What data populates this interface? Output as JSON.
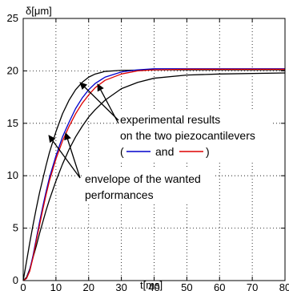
{
  "chart_data": {
    "type": "line",
    "ylabel": "δ[μm]",
    "xlabel": "t[ms]",
    "xlim": [
      0,
      80
    ],
    "ylim": [
      0,
      25
    ],
    "xticks": [
      0,
      10,
      20,
      30,
      40,
      50,
      60,
      70,
      80
    ],
    "yticks": [
      0,
      5,
      10,
      15,
      20,
      25
    ],
    "grid": true,
    "series": [
      {
        "color": "#000000",
        "points": [
          [
            0,
            0
          ],
          [
            1,
            1.8
          ],
          [
            2,
            3.6
          ],
          [
            3,
            5.3
          ],
          [
            4,
            6.9
          ],
          [
            5,
            8.4
          ],
          [
            6,
            9.7
          ],
          [
            7,
            11.0
          ],
          [
            8,
            12.2
          ],
          [
            10,
            14.2
          ],
          [
            12,
            15.9
          ],
          [
            14,
            17.2
          ],
          [
            16,
            18.2
          ],
          [
            18,
            18.9
          ],
          [
            20,
            19.4
          ],
          [
            22,
            19.7
          ],
          [
            25,
            19.95
          ],
          [
            30,
            20.05
          ],
          [
            40,
            20.1
          ],
          [
            60,
            20.1
          ],
          [
            80,
            20.1
          ]
        ]
      },
      {
        "color": "#000000",
        "points": [
          [
            0,
            0
          ],
          [
            1,
            0.3
          ],
          [
            2,
            1.1
          ],
          [
            3,
            2.2
          ],
          [
            4,
            3.3
          ],
          [
            5,
            4.5
          ],
          [
            6,
            5.6
          ],
          [
            7,
            6.7
          ],
          [
            8,
            7.7
          ],
          [
            10,
            9.5
          ],
          [
            12,
            11.1
          ],
          [
            14,
            12.5
          ],
          [
            16,
            13.7
          ],
          [
            18,
            14.7
          ],
          [
            20,
            15.6
          ],
          [
            22,
            16.3
          ],
          [
            25,
            17.2
          ],
          [
            30,
            18.3
          ],
          [
            35,
            18.9
          ],
          [
            40,
            19.3
          ],
          [
            50,
            19.6
          ],
          [
            60,
            19.7
          ],
          [
            80,
            19.8
          ]
        ]
      },
      {
        "color": "#0000cc",
        "points": [
          [
            0,
            0
          ],
          [
            1,
            0.2
          ],
          [
            2,
            1.0
          ],
          [
            3,
            2.4
          ],
          [
            4,
            4.0
          ],
          [
            5,
            5.6
          ],
          [
            6,
            7.1
          ],
          [
            7,
            8.5
          ],
          [
            8,
            9.8
          ],
          [
            10,
            11.9
          ],
          [
            12,
            13.7
          ],
          [
            14,
            15.1
          ],
          [
            16,
            16.4
          ],
          [
            18,
            17.4
          ],
          [
            20,
            18.2
          ],
          [
            22,
            18.8
          ],
          [
            25,
            19.4
          ],
          [
            30,
            19.9
          ],
          [
            35,
            20.1
          ],
          [
            40,
            20.2
          ],
          [
            50,
            20.2
          ],
          [
            60,
            20.2
          ],
          [
            80,
            20.2
          ]
        ]
      },
      {
        "color": "#dd0000",
        "points": [
          [
            0,
            0
          ],
          [
            1,
            0.2
          ],
          [
            2,
            0.9
          ],
          [
            3,
            2.2
          ],
          [
            4,
            3.8
          ],
          [
            5,
            5.3
          ],
          [
            6,
            6.8
          ],
          [
            7,
            8.2
          ],
          [
            8,
            9.5
          ],
          [
            10,
            11.6
          ],
          [
            12,
            13.3
          ],
          [
            14,
            14.7
          ],
          [
            16,
            15.9
          ],
          [
            18,
            16.9
          ],
          [
            20,
            17.7
          ],
          [
            22,
            18.4
          ],
          [
            25,
            19.1
          ],
          [
            30,
            19.7
          ],
          [
            35,
            20.0
          ],
          [
            40,
            20.1
          ],
          [
            50,
            20.15
          ],
          [
            60,
            20.15
          ],
          [
            80,
            20.15
          ]
        ]
      }
    ],
    "annotations": {
      "exp_line1": "experimental results",
      "exp_line2": "on the two piezocantilevers",
      "exp_line3_open": "(",
      "exp_line3_and": "and",
      "exp_line3_close": ")",
      "env_line1": "envelope of the wanted",
      "env_line2": "performances",
      "legend_blue_color": "#0000cc",
      "legend_red_color": "#dd0000"
    }
  }
}
